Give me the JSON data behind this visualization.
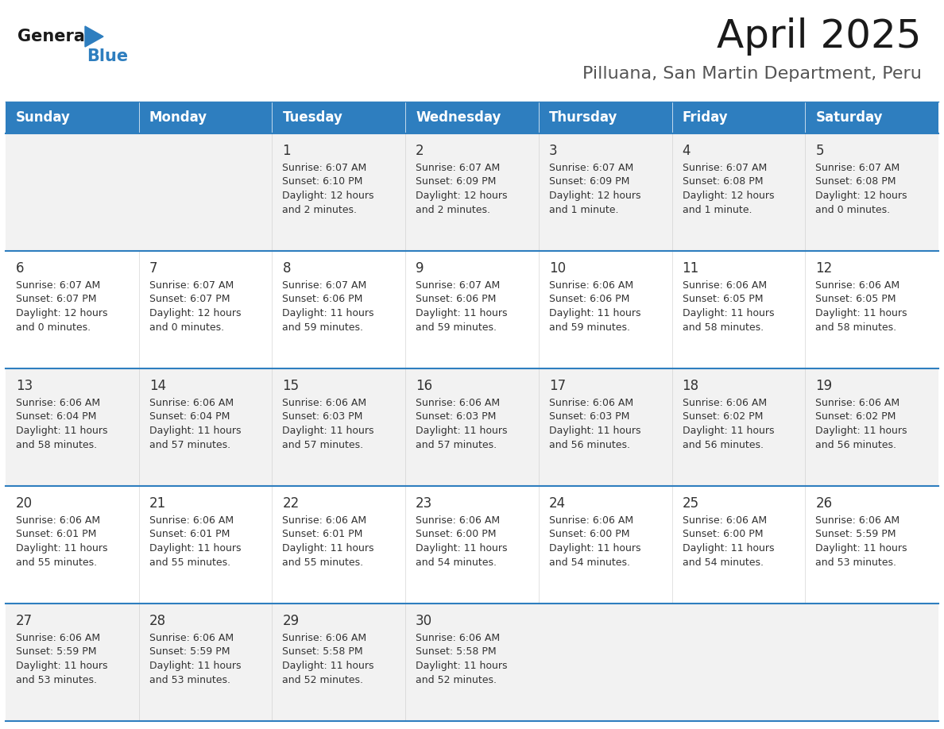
{
  "title": "April 2025",
  "subtitle": "Pilluana, San Martin Department, Peru",
  "days_of_week": [
    "Sunday",
    "Monday",
    "Tuesday",
    "Wednesday",
    "Thursday",
    "Friday",
    "Saturday"
  ],
  "header_bg": "#2E7EBF",
  "header_text": "#FFFFFF",
  "row_bg_light": "#F2F2F2",
  "row_bg_white": "#FFFFFF",
  "row_divider": "#2E7EBF",
  "cell_text": "#333333",
  "day_num_color": "#333333",
  "logo_general_color": "#1a1a1a",
  "logo_blue_color": "#2E7EBF",
  "title_color": "#1a1a1a",
  "subtitle_color": "#555555",
  "calendar_data": [
    [
      null,
      null,
      {
        "day": 1,
        "sunrise": "6:07 AM",
        "sunset": "6:10 PM",
        "daylight_h": "12 hours",
        "daylight_m": "and 2 minutes."
      },
      {
        "day": 2,
        "sunrise": "6:07 AM",
        "sunset": "6:09 PM",
        "daylight_h": "12 hours",
        "daylight_m": "and 2 minutes."
      },
      {
        "day": 3,
        "sunrise": "6:07 AM",
        "sunset": "6:09 PM",
        "daylight_h": "12 hours",
        "daylight_m": "and 1 minute."
      },
      {
        "day": 4,
        "sunrise": "6:07 AM",
        "sunset": "6:08 PM",
        "daylight_h": "12 hours",
        "daylight_m": "and 1 minute."
      },
      {
        "day": 5,
        "sunrise": "6:07 AM",
        "sunset": "6:08 PM",
        "daylight_h": "12 hours",
        "daylight_m": "and 0 minutes."
      }
    ],
    [
      {
        "day": 6,
        "sunrise": "6:07 AM",
        "sunset": "6:07 PM",
        "daylight_h": "12 hours",
        "daylight_m": "and 0 minutes."
      },
      {
        "day": 7,
        "sunrise": "6:07 AM",
        "sunset": "6:07 PM",
        "daylight_h": "12 hours",
        "daylight_m": "and 0 minutes."
      },
      {
        "day": 8,
        "sunrise": "6:07 AM",
        "sunset": "6:06 PM",
        "daylight_h": "11 hours",
        "daylight_m": "and 59 minutes."
      },
      {
        "day": 9,
        "sunrise": "6:07 AM",
        "sunset": "6:06 PM",
        "daylight_h": "11 hours",
        "daylight_m": "and 59 minutes."
      },
      {
        "day": 10,
        "sunrise": "6:06 AM",
        "sunset": "6:06 PM",
        "daylight_h": "11 hours",
        "daylight_m": "and 59 minutes."
      },
      {
        "day": 11,
        "sunrise": "6:06 AM",
        "sunset": "6:05 PM",
        "daylight_h": "11 hours",
        "daylight_m": "and 58 minutes."
      },
      {
        "day": 12,
        "sunrise": "6:06 AM",
        "sunset": "6:05 PM",
        "daylight_h": "11 hours",
        "daylight_m": "and 58 minutes."
      }
    ],
    [
      {
        "day": 13,
        "sunrise": "6:06 AM",
        "sunset": "6:04 PM",
        "daylight_h": "11 hours",
        "daylight_m": "and 58 minutes."
      },
      {
        "day": 14,
        "sunrise": "6:06 AM",
        "sunset": "6:04 PM",
        "daylight_h": "11 hours",
        "daylight_m": "and 57 minutes."
      },
      {
        "day": 15,
        "sunrise": "6:06 AM",
        "sunset": "6:03 PM",
        "daylight_h": "11 hours",
        "daylight_m": "and 57 minutes."
      },
      {
        "day": 16,
        "sunrise": "6:06 AM",
        "sunset": "6:03 PM",
        "daylight_h": "11 hours",
        "daylight_m": "and 57 minutes."
      },
      {
        "day": 17,
        "sunrise": "6:06 AM",
        "sunset": "6:03 PM",
        "daylight_h": "11 hours",
        "daylight_m": "and 56 minutes."
      },
      {
        "day": 18,
        "sunrise": "6:06 AM",
        "sunset": "6:02 PM",
        "daylight_h": "11 hours",
        "daylight_m": "and 56 minutes."
      },
      {
        "day": 19,
        "sunrise": "6:06 AM",
        "sunset": "6:02 PM",
        "daylight_h": "11 hours",
        "daylight_m": "and 56 minutes."
      }
    ],
    [
      {
        "day": 20,
        "sunrise": "6:06 AM",
        "sunset": "6:01 PM",
        "daylight_h": "11 hours",
        "daylight_m": "and 55 minutes."
      },
      {
        "day": 21,
        "sunrise": "6:06 AM",
        "sunset": "6:01 PM",
        "daylight_h": "11 hours",
        "daylight_m": "and 55 minutes."
      },
      {
        "day": 22,
        "sunrise": "6:06 AM",
        "sunset": "6:01 PM",
        "daylight_h": "11 hours",
        "daylight_m": "and 55 minutes."
      },
      {
        "day": 23,
        "sunrise": "6:06 AM",
        "sunset": "6:00 PM",
        "daylight_h": "11 hours",
        "daylight_m": "and 54 minutes."
      },
      {
        "day": 24,
        "sunrise": "6:06 AM",
        "sunset": "6:00 PM",
        "daylight_h": "11 hours",
        "daylight_m": "and 54 minutes."
      },
      {
        "day": 25,
        "sunrise": "6:06 AM",
        "sunset": "6:00 PM",
        "daylight_h": "11 hours",
        "daylight_m": "and 54 minutes."
      },
      {
        "day": 26,
        "sunrise": "6:06 AM",
        "sunset": "5:59 PM",
        "daylight_h": "11 hours",
        "daylight_m": "and 53 minutes."
      }
    ],
    [
      {
        "day": 27,
        "sunrise": "6:06 AM",
        "sunset": "5:59 PM",
        "daylight_h": "11 hours",
        "daylight_m": "and 53 minutes."
      },
      {
        "day": 28,
        "sunrise": "6:06 AM",
        "sunset": "5:59 PM",
        "daylight_h": "11 hours",
        "daylight_m": "and 53 minutes."
      },
      {
        "day": 29,
        "sunrise": "6:06 AM",
        "sunset": "5:58 PM",
        "daylight_h": "11 hours",
        "daylight_m": "and 52 minutes."
      },
      {
        "day": 30,
        "sunrise": "6:06 AM",
        "sunset": "5:58 PM",
        "daylight_h": "11 hours",
        "daylight_m": "and 52 minutes."
      },
      null,
      null,
      null
    ]
  ]
}
